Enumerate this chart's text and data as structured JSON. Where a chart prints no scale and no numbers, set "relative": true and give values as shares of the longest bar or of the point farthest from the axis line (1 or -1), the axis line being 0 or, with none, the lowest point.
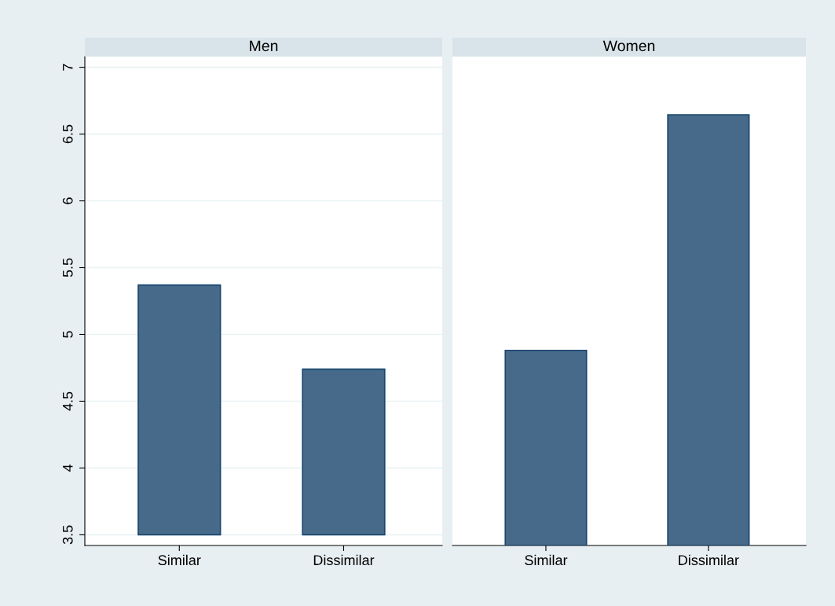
{
  "chart_data": [
    {
      "type": "bar",
      "title": "Men",
      "categories": [
        "Similar",
        "Dissimilar"
      ],
      "values": [
        1.87,
        1.24
      ],
      "base": [
        3.5,
        3.5
      ],
      "color": "#476a8a",
      "ylim": [
        3.42,
        7.08
      ],
      "yticks": [
        3.5,
        4,
        4.5,
        5,
        5.5,
        6,
        6.5,
        7
      ],
      "grid": "y"
    },
    {
      "type": "bar",
      "title": "Women",
      "categories": [
        "Similar",
        "Dissimilar"
      ],
      "values": [
        0.453,
        1
      ],
      "color": "#476a8a",
      "relative": true
    }
  ]
}
